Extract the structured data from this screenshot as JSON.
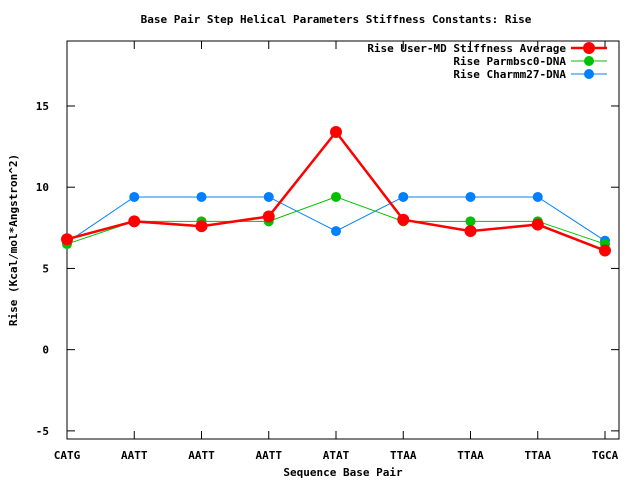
{
  "chart_data": {
    "type": "line",
    "title": "Base Pair Step Helical Parameters Stiffness Constants: Rise",
    "xlabel": "Sequence Base Pair",
    "ylabel": "Rise (Kcal/mol*Angstron^2)",
    "categories": [
      "CATG",
      "AATT",
      "AATT",
      "AATT",
      "ATAT",
      "TTAA",
      "TTAA",
      "TTAA",
      "TGCA"
    ],
    "ylim": [
      -5.5,
      19
    ],
    "yticks": [
      -5,
      0,
      5,
      10,
      15
    ],
    "grid": false,
    "legend_position": "top-right",
    "series": [
      {
        "name": "Rise User-MD Stiffness Average",
        "color": "#ff0000",
        "values": [
          6.8,
          7.9,
          7.6,
          8.2,
          13.4,
          8.0,
          7.3,
          7.7,
          6.1
        ]
      },
      {
        "name": "Rise Parmbsc0-DNA",
        "color": "#00c000",
        "values": [
          6.5,
          7.9,
          7.9,
          7.9,
          9.4,
          7.9,
          7.9,
          7.9,
          6.5
        ]
      },
      {
        "name": "Rise Charmm27-DNA",
        "color": "#0080ff",
        "values": [
          6.6,
          9.4,
          9.4,
          9.4,
          7.3,
          9.4,
          9.4,
          9.4,
          6.7
        ]
      }
    ]
  }
}
